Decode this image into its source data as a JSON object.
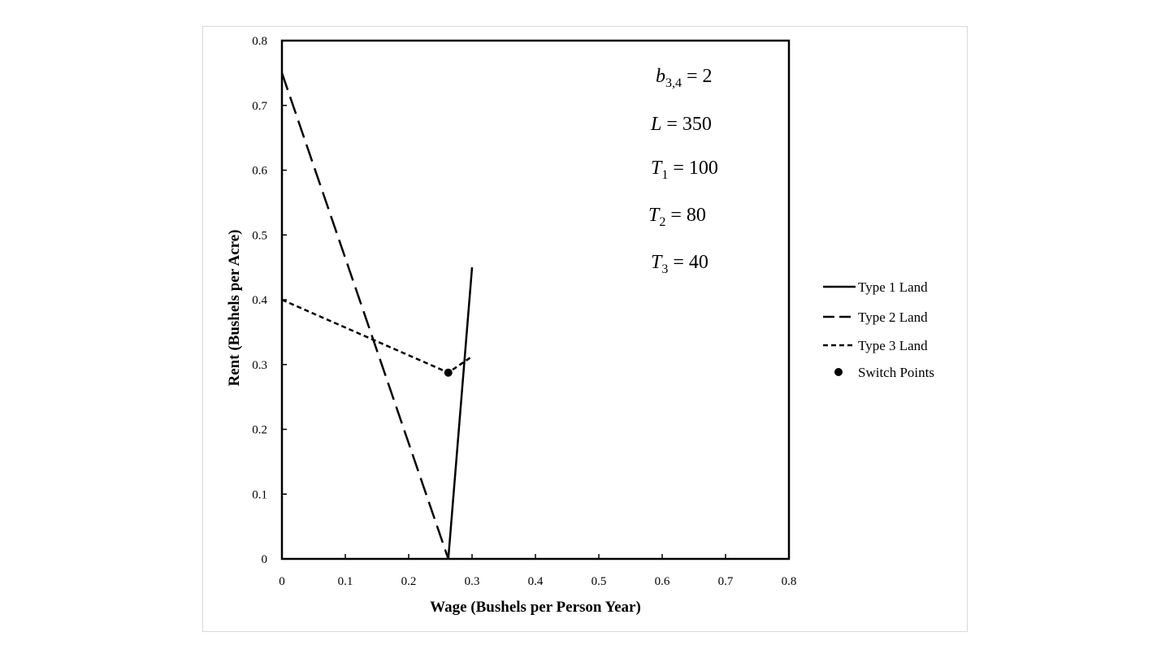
{
  "chart_data": {
    "type": "line",
    "title": "",
    "xlabel": "Wage (Bushels per Person Year)",
    "ylabel": "Rent (Bushels per Acre)",
    "xlim": [
      0,
      0.8
    ],
    "ylim": [
      0,
      0.8
    ],
    "xticks": [
      0,
      0.1,
      0.2,
      0.3,
      0.4,
      0.5,
      0.6,
      0.7,
      0.8
    ],
    "yticks": [
      0,
      0.1,
      0.2,
      0.3,
      0.4,
      0.5,
      0.6,
      0.7,
      0.8
    ],
    "xtick_labels": [
      "0",
      "0.1",
      "0.2",
      "0.3",
      "0.4",
      "0.5",
      "0.6",
      "0.7",
      "0.8"
    ],
    "ytick_labels": [
      "0",
      "0.1",
      "0.2",
      "0.3",
      "0.4",
      "0.5",
      "0.6",
      "0.7",
      "0.8"
    ],
    "grid": false,
    "legend_position": "right",
    "series": [
      {
        "name": "Type 1 Land",
        "style": "solid",
        "color": "#000000",
        "points": [
          [
            0.2625,
            0
          ],
          [
            0.3,
            0.45
          ]
        ]
      },
      {
        "name": "Type 2 Land",
        "style": "long-dash",
        "color": "#000000",
        "points": [
          [
            0,
            0.75
          ],
          [
            0.2625,
            0
          ]
        ]
      },
      {
        "name": "Type 3 Land",
        "style": "short-dash",
        "color": "#000000",
        "points": [
          [
            0,
            0.4
          ],
          [
            0.2625,
            0.2875
          ],
          [
            0.3,
            0.3125
          ]
        ]
      },
      {
        "name": "Switch Points",
        "style": "marker",
        "color": "#000000",
        "points": [
          [
            0.2625,
            0.2875
          ]
        ]
      }
    ],
    "annotations": [
      {
        "var": "b",
        "sub": "3,4",
        "rest": " = 2"
      },
      {
        "var": "L",
        "sub": "",
        "rest": " = 350"
      },
      {
        "var": "T",
        "sub": "1",
        "rest": " = 100"
      },
      {
        "var": "T",
        "sub": "2",
        "rest": " = 80"
      },
      {
        "var": "T",
        "sub": "3",
        "rest": " = 40"
      }
    ]
  }
}
